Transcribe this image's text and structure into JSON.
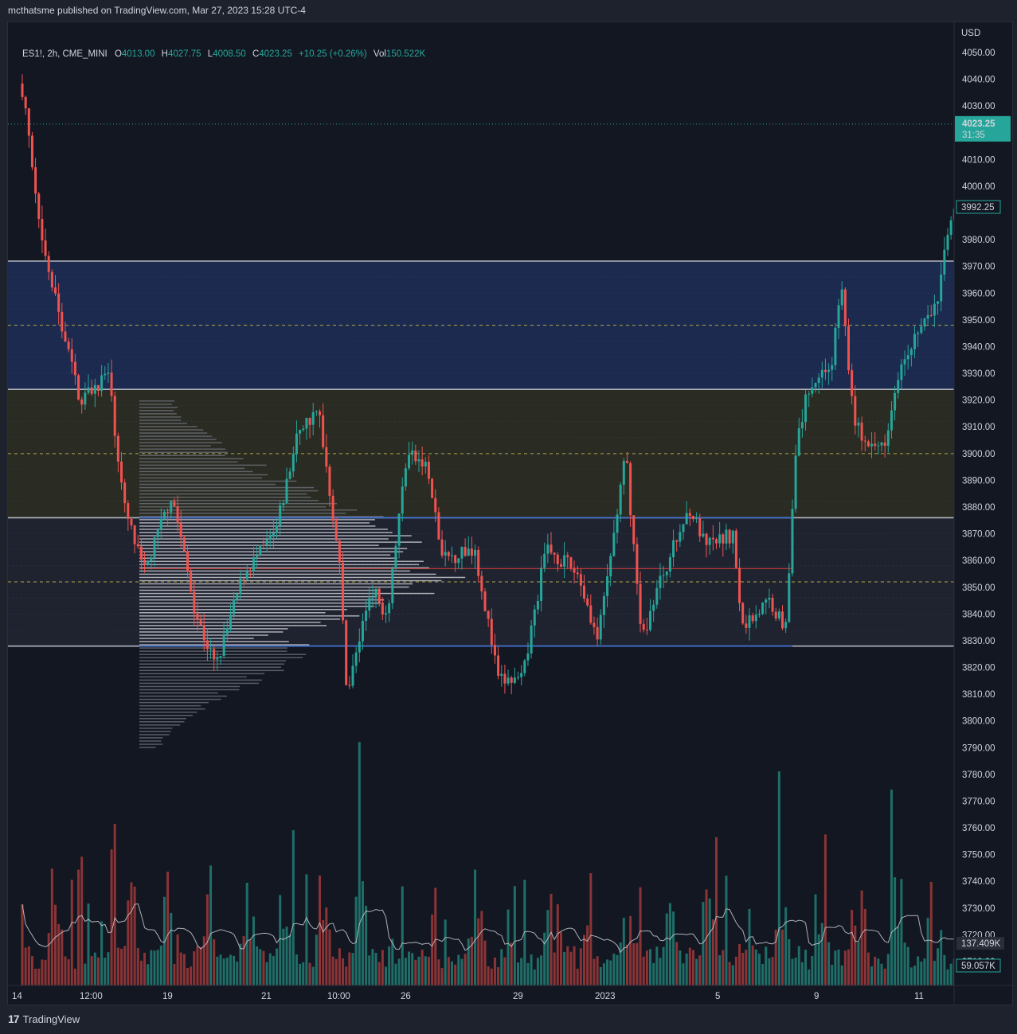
{
  "publisher": "mcthatsme published on TradingView.com, Mar 27, 2023 15:28 UTC-4",
  "legend": {
    "symbol": "ES1!, 2h, CME_MINI",
    "open_label": "O",
    "open": "4013.00",
    "high_label": "H",
    "high": "4027.75",
    "low_label": "L",
    "low": "4008.50",
    "close_label": "C",
    "close": "4023.25",
    "change": "+10.25 (+0.26%)",
    "vol_label": "Vol",
    "vol": "150.522K"
  },
  "price_axis": {
    "currency": "USD",
    "ticks": [
      "4050.00",
      "4040.00",
      "4030.00",
      "4010.00",
      "4000.00",
      "3980.00",
      "3970.00",
      "3960.00",
      "3950.00",
      "3940.00",
      "3930.00",
      "3920.00",
      "3910.00",
      "3900.00",
      "3890.00",
      "3880.00",
      "3870.00",
      "3860.00",
      "3850.00",
      "3840.00",
      "3830.00",
      "3820.00",
      "3810.00",
      "3800.00",
      "3790.00",
      "3780.00",
      "3770.00",
      "3760.00",
      "3750.00",
      "3740.00",
      "3730.00",
      "3720.00",
      "3710.00"
    ],
    "current_price": "4023.25",
    "countdown": "31:35",
    "last_close_label": "3992.25",
    "volume_ma_label": "137.409K",
    "volume_label": "59.057K"
  },
  "time_axis": [
    "14",
    "12:00",
    "19",
    "21",
    "10:00",
    "26",
    "29",
    "2023",
    "5",
    "9",
    "11"
  ],
  "footer": {
    "logo_text": "TradingView"
  },
  "colors": {
    "up": "#26a69a",
    "down": "#ef5350",
    "up_vol": "#1f6e68",
    "down_vol": "#8b3436",
    "blue_zone": "#1b2a4e",
    "olive_zone": "#2a2b22",
    "gray_zone": "#1f2330",
    "level_line": "#b2b5be",
    "blue_line": "#3d6fd6",
    "poc_line": "#e0433c",
    "mid_dashed": "#b5a642",
    "current": "#26a69a"
  },
  "chart_data": {
    "type": "candlestick",
    "symbol": "ES1!",
    "interval": "2h",
    "ylim": [
      3700,
      4057
    ],
    "levels": {
      "blue_zone": [
        3924,
        3972
      ],
      "olive_zone": [
        3876,
        3924
      ],
      "gray_zone": [
        3828,
        3876
      ],
      "zone_midlines": [
        3948,
        3900,
        3852
      ],
      "blue_lines": [
        3876,
        3828
      ],
      "poc": 3857,
      "current_price": 4023.25,
      "last_close": 3992.25
    },
    "volume_profile": {
      "price_range": [
        3790,
        3920
      ],
      "peak_price": 3857
    },
    "volume_axis_labels": {
      "ma": 137409,
      "last": 59057
    }
  }
}
